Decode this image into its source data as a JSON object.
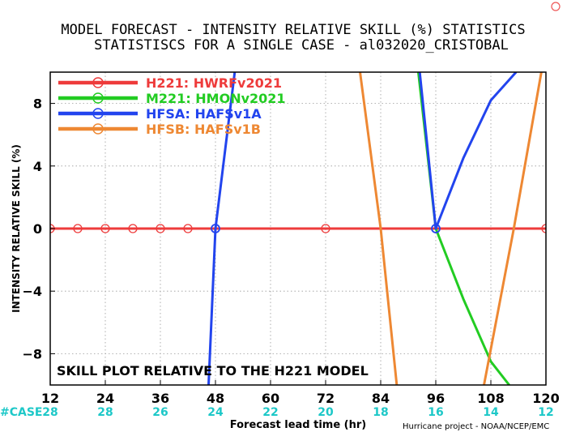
{
  "chart_data": {
    "type": "line",
    "title": "MODEL FORECAST - INTENSITY RELATIVE SKILL (%) STATISTICS",
    "subtitle": "STATISTISCS FOR A SINGLE CASE - al032020_CRISTOBAL",
    "xlabel": "Forecast lead time (hr)",
    "ylabel": "INTENSITY RELATIVE SKILL (%)",
    "xlim": [
      12,
      120
    ],
    "ylim": [
      -10,
      10
    ],
    "x_ticks": [
      12,
      24,
      36,
      48,
      60,
      72,
      84,
      96,
      108,
      120
    ],
    "y_ticks": [
      -8,
      -4,
      0,
      4,
      8
    ],
    "grid": true,
    "case_label": "#CASE",
    "case_counts": [
      "28",
      "28",
      "26",
      "24",
      "22",
      "20",
      "18",
      "16",
      "14",
      "12"
    ],
    "annotation": "SKILL PLOT RELATIVE TO THE H221 MODEL",
    "credit": "Hurricane project - NOAA/NCEP/EMC",
    "legend_position": "top-left",
    "series": [
      {
        "name": "H221: HWRFv2021",
        "color": "#ee3b3b",
        "x": [
          12,
          18,
          24,
          30,
          36,
          42,
          48,
          72,
          96,
          120
        ],
        "y": [
          0,
          0,
          0,
          0,
          0,
          0,
          0,
          0,
          0,
          0
        ],
        "markers": "open-circle"
      },
      {
        "name": "M221: HMONv2021",
        "color": "#22cc22",
        "x": [
          92.2,
          96,
          102,
          108,
          112
        ],
        "y": [
          10,
          0,
          -4.5,
          -8.5,
          -10
        ],
        "markers": "none"
      },
      {
        "name": "HFSA: HAFSv1A",
        "color": "#2244ee",
        "x": [
          46.5,
          48,
          52.2
        ],
        "y": [
          -10,
          0,
          10
        ],
        "x2": [
          92.5,
          96,
          102,
          108,
          113.5
        ],
        "y2": [
          10,
          0,
          4.5,
          8.2,
          10
        ],
        "markers": "none"
      },
      {
        "name": "HFSB: HAFSv1B",
        "color": "#ee8833",
        "x": [
          79.5,
          84,
          87.5
        ],
        "y": [
          10,
          0,
          -10
        ],
        "x2": [
          106.5,
          113,
          119
        ],
        "y2": [
          -10,
          0,
          10
        ],
        "markers": "none"
      }
    ]
  }
}
